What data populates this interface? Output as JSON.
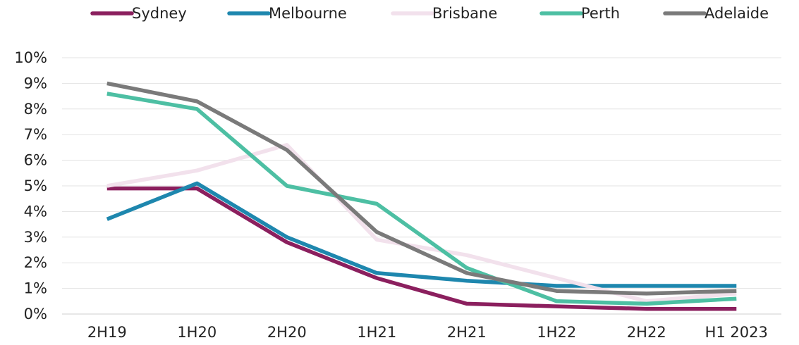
{
  "chart_data": {
    "type": "line",
    "categories": [
      "2H19",
      "1H20",
      "2H20",
      "1H21",
      "2H21",
      "1H22",
      "2H22",
      "H1 2023"
    ],
    "ylim": [
      0,
      10
    ],
    "y_ticks": [
      "0%",
      "1%",
      "2%",
      "3%",
      "4%",
      "5%",
      "6%",
      "7%",
      "8%",
      "9%",
      "10%"
    ],
    "y_tick_values": [
      0,
      1,
      2,
      3,
      4,
      5,
      6,
      7,
      8,
      9,
      10
    ],
    "grid": true,
    "legend_position": "top",
    "series": [
      {
        "name": "Sydney",
        "color": "#8B1F5E",
        "values": [
          4.9,
          4.9,
          2.8,
          1.4,
          0.4,
          0.3,
          0.2,
          0.2
        ]
      },
      {
        "name": "Melbourne",
        "color": "#1E87AE",
        "values": [
          3.7,
          5.1,
          3.0,
          1.6,
          1.3,
          1.1,
          1.1,
          1.1
        ]
      },
      {
        "name": "Brisbane",
        "color": "#F2E1EC",
        "values": [
          5.0,
          5.6,
          6.6,
          2.9,
          2.3,
          1.4,
          0.5,
          0.8
        ]
      },
      {
        "name": "Perth",
        "color": "#4DBFA3",
        "values": [
          8.6,
          8.0,
          5.0,
          4.3,
          1.8,
          0.5,
          0.4,
          0.6
        ]
      },
      {
        "name": "Adelaide",
        "color": "#7A7A7A",
        "values": [
          9.0,
          8.3,
          6.4,
          3.2,
          1.6,
          0.9,
          0.8,
          0.9
        ]
      }
    ]
  }
}
